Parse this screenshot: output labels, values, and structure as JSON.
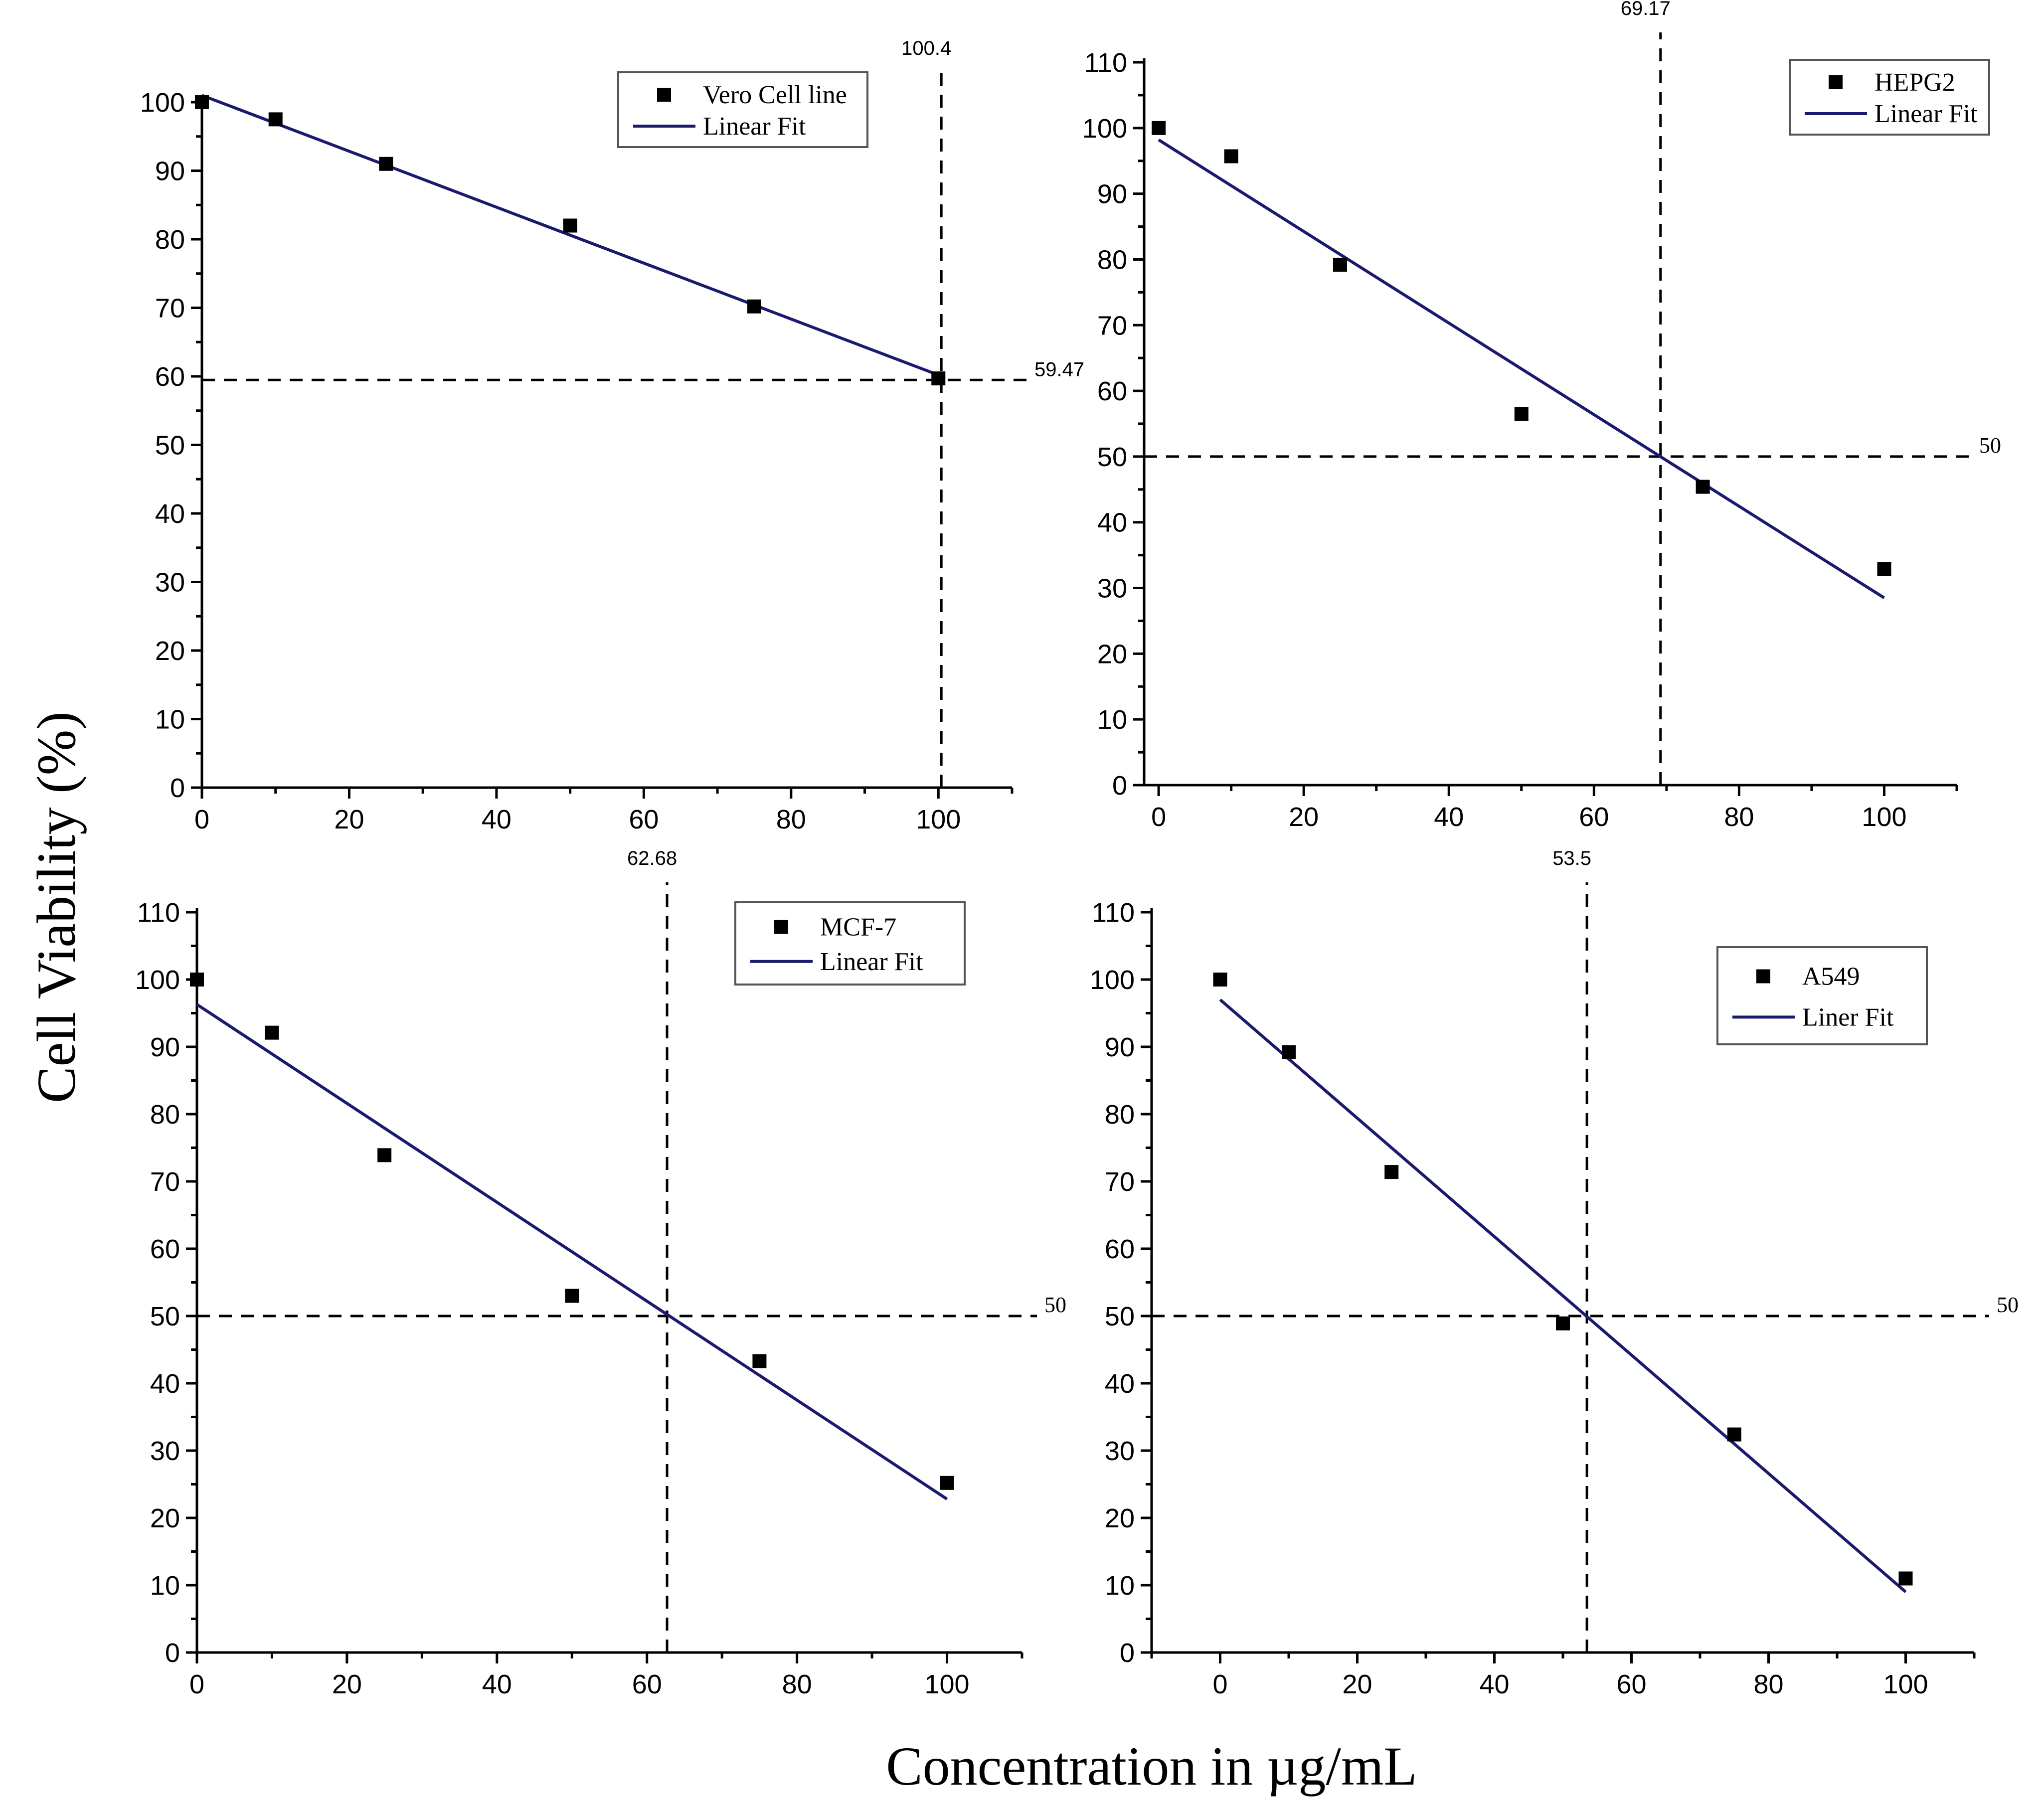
{
  "figure": {
    "ylabel": "Cell Viability (%)",
    "xlabel": "Concentration in µg/mL"
  },
  "chart_data": [
    {
      "type": "scatter",
      "xlim": [
        0,
        110
      ],
      "ylim": [
        0,
        100
      ],
      "xticks": [
        0,
        20,
        40,
        60,
        80,
        100
      ],
      "yticks": [
        0,
        10,
        20,
        30,
        40,
        50,
        60,
        70,
        80,
        90,
        100
      ],
      "series": [
        {
          "name": "Vero Cell line",
          "kind": "points",
          "x": [
            0,
            10,
            25,
            50,
            75,
            100
          ],
          "y": [
            100,
            97.5,
            91,
            82,
            70.2,
            59.7
          ]
        },
        {
          "name": "Linear Fit",
          "kind": "line",
          "x": [
            0,
            100
          ],
          "y": [
            101,
            60.2
          ],
          "color": "#1a1a6e"
        }
      ],
      "ref_x": {
        "value": 100.4,
        "label": "100.4"
      },
      "ref_y": {
        "value": 59.47,
        "label": "59.47"
      },
      "legend": [
        "Vero Cell line",
        "Linear Fit"
      ],
      "legend_position": "top-right"
    },
    {
      "type": "scatter",
      "xlim": [
        -2,
        110
      ],
      "ylim": [
        0,
        110
      ],
      "xticks": [
        0,
        20,
        40,
        60,
        80,
        100
      ],
      "yticks": [
        0,
        10,
        20,
        30,
        40,
        50,
        60,
        70,
        80,
        90,
        100,
        110
      ],
      "series": [
        {
          "name": "HEPG2",
          "kind": "points",
          "x": [
            0,
            10,
            25,
            50,
            75,
            100
          ],
          "y": [
            100,
            95.7,
            79.2,
            56.5,
            45.4,
            32.9
          ]
        },
        {
          "name": "Linear Fit",
          "kind": "line",
          "x": [
            0,
            100
          ],
          "y": [
            98.2,
            28.5
          ],
          "color": "#1a1a6e"
        }
      ],
      "ref_x": {
        "value": 69.17,
        "label": "69.17"
      },
      "ref_y": {
        "value": 50,
        "label": "50"
      },
      "legend": [
        "HEPG2",
        "Linear Fit"
      ],
      "legend_position": "top-right"
    },
    {
      "type": "scatter",
      "xlim": [
        0,
        110
      ],
      "ylim": [
        0,
        110
      ],
      "xticks": [
        0,
        20,
        40,
        60,
        80,
        100
      ],
      "yticks": [
        0,
        10,
        20,
        30,
        40,
        50,
        60,
        70,
        80,
        90,
        100,
        110
      ],
      "series": [
        {
          "name": "MCF-7",
          "kind": "points",
          "x": [
            0,
            10,
            25,
            50,
            75,
            100
          ],
          "y": [
            100,
            92.1,
            73.9,
            53,
            43.3,
            25.2
          ]
        },
        {
          "name": "Linear Fit",
          "kind": "line",
          "x": [
            0,
            100
          ],
          "y": [
            96.3,
            22.8
          ],
          "color": "#1a1a6e"
        }
      ],
      "ref_x": {
        "value": 62.68,
        "label": "62.68"
      },
      "ref_y": {
        "value": 50,
        "label": "50"
      },
      "legend": [
        "MCF-7",
        "Linear Fit"
      ],
      "legend_position": "top-right"
    },
    {
      "type": "scatter",
      "xlim": [
        -10,
        110
      ],
      "ylim": [
        0,
        110
      ],
      "xticks": [
        0,
        20,
        40,
        60,
        80,
        100
      ],
      "yticks": [
        0,
        10,
        20,
        30,
        40,
        50,
        60,
        70,
        80,
        90,
        100,
        110
      ],
      "series": [
        {
          "name": "A549",
          "kind": "points",
          "x": [
            0,
            10,
            25,
            50,
            75,
            100
          ],
          "y": [
            100,
            89.2,
            71.4,
            48.9,
            32.4,
            11
          ]
        },
        {
          "name": "Liner Fit",
          "kind": "line",
          "x": [
            0,
            100
          ],
          "y": [
            97,
            9
          ],
          "color": "#1a1a6e"
        }
      ],
      "ref_x": {
        "value": 53.5,
        "label": "53.5"
      },
      "ref_y": {
        "value": 50,
        "label": "50"
      },
      "legend": [
        "A549",
        "Liner Fit"
      ],
      "legend_position": "top-right"
    }
  ]
}
